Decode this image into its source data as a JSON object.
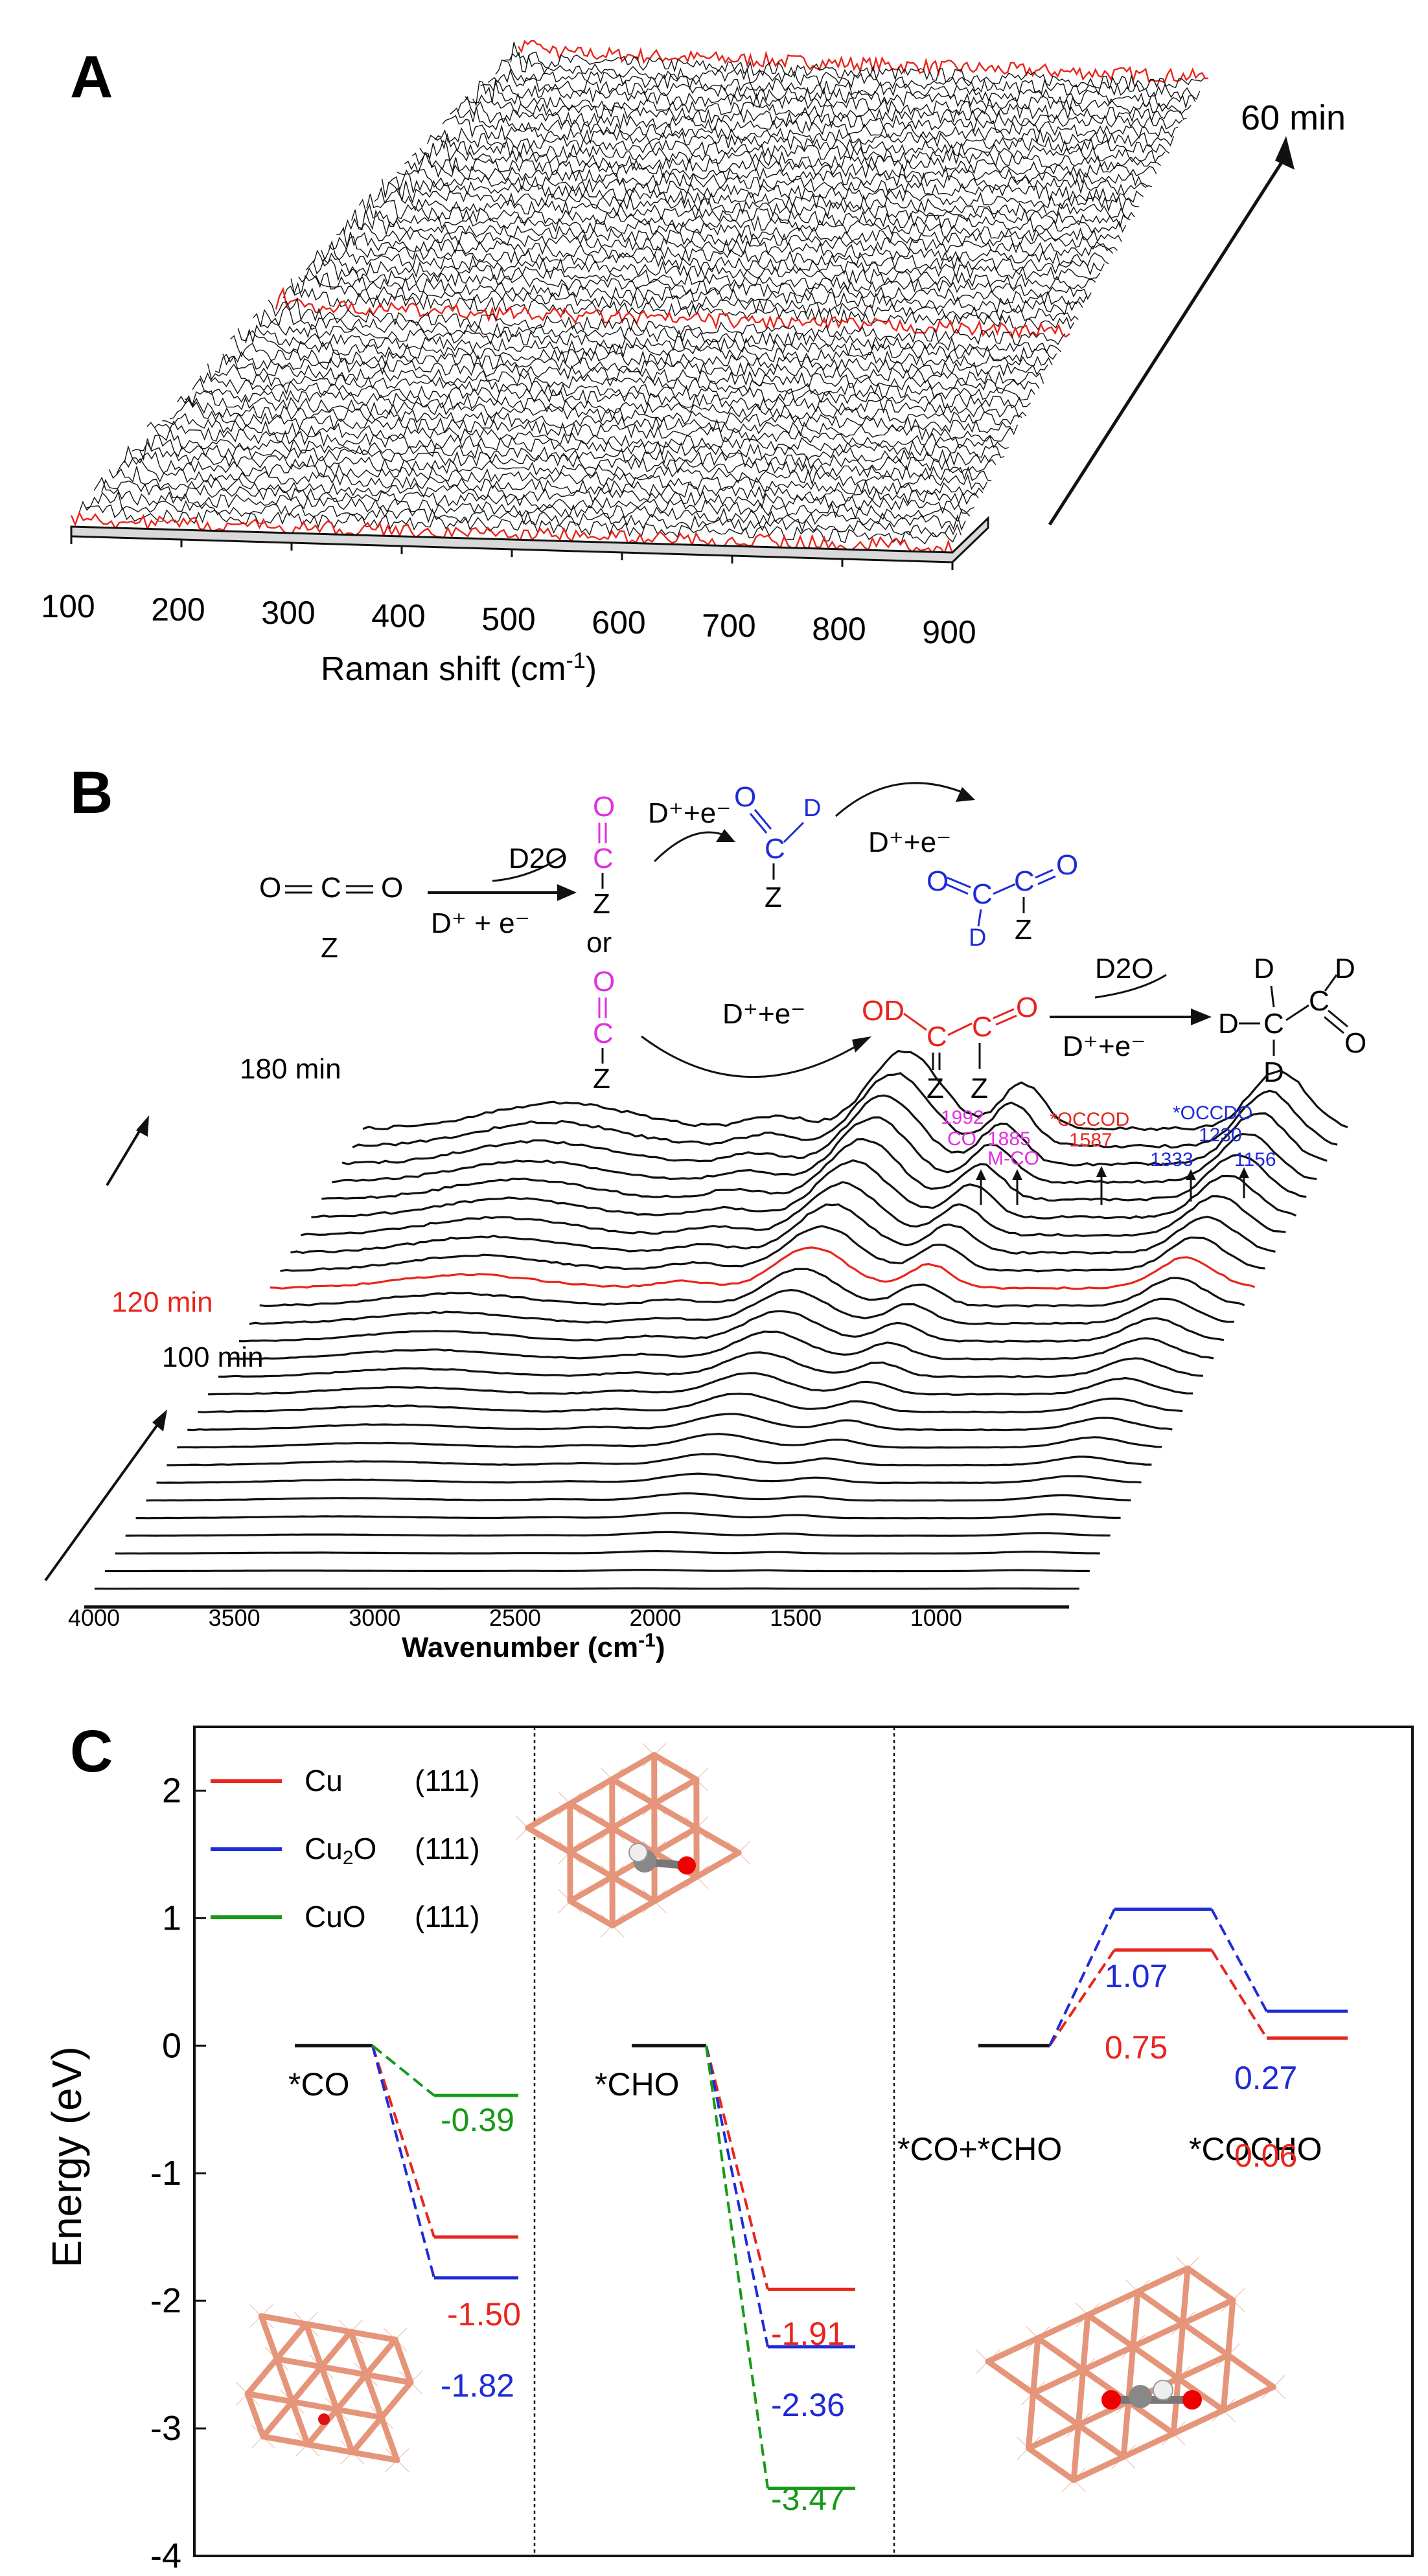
{
  "colors": {
    "black": "#111111",
    "red": "#e8251c",
    "blue": "#1f2bd6",
    "green": "#169a16",
    "magenta": "#e030e0",
    "grey": "#bdbdbd",
    "copper": "#e5957a",
    "copperDark": "#c9604a"
  },
  "panelA": {
    "label": "A",
    "x_ticks": [
      "100",
      "200",
      "300",
      "400",
      "500",
      "600",
      "700",
      "800",
      "900"
    ],
    "x_label": "Raman shift (cm",
    "x_label_sup": "-1",
    "x_label_end": ")",
    "time_label": "60 min"
  },
  "panelB": {
    "label": "B",
    "x_ticks": [
      "4000",
      "3500",
      "3000",
      "2500",
      "2000",
      "1500",
      "1000"
    ],
    "x_label": "Wavenumber (cm",
    "x_label_sup": "-1",
    "x_label_end": ")",
    "time_top": "180 min",
    "time_mid": "120 min",
    "time_low": "100 min",
    "scheme": {
      "co2_left": "O",
      "co2_c": "C",
      "co2_right": "O",
      "co2_z": "Z",
      "d2o_1": "D2O",
      "step1": "D⁺ + e⁻",
      "or": "or",
      "mag_top": [
        "O",
        "C",
        "Z"
      ],
      "mag_bot": [
        "O",
        "C",
        "Z"
      ],
      "step2": "D⁺+e⁻",
      "cho": [
        "O",
        "C",
        "D",
        "Z"
      ],
      "step3": "D⁺+e⁻",
      "occdo": [
        "O",
        "C",
        "C",
        "O",
        "D",
        "Z"
      ],
      "step4": "D⁺+e⁻",
      "occod": [
        "OD",
        "C",
        "C",
        "O",
        "Z",
        "Z"
      ],
      "d2o_2": "D2O",
      "step5": "D⁺+e⁻",
      "product": [
        "D",
        "C",
        "C",
        "D",
        "D",
        "D",
        "O"
      ]
    },
    "annotations": [
      {
        "text": "1992",
        "color": "magenta"
      },
      {
        "text": "CO",
        "color": "magenta"
      },
      {
        "text": "1885",
        "color": "magenta"
      },
      {
        "text": "M-CO",
        "color": "magenta"
      },
      {
        "text": "*OCCOD",
        "color": "red"
      },
      {
        "text": "1587",
        "color": "red"
      },
      {
        "text": "*OCCDO",
        "color": "blue"
      },
      {
        "text": "1230",
        "color": "blue"
      },
      {
        "text": "1333",
        "color": "blue"
      },
      {
        "text": "1156",
        "color": "blue"
      }
    ]
  },
  "panelC": {
    "label": "C",
    "y_label": "Energy (eV)",
    "legend": [
      {
        "name": "Cu",
        "face": "(111)",
        "color": "red"
      },
      {
        "name": "Cu2O",
        "face": "(111)",
        "color": "blue"
      },
      {
        "name": "CuO",
        "face": "(111)",
        "color": "green"
      }
    ],
    "legend_cu2o_main": "Cu",
    "legend_cu2o_sub": "2",
    "legend_cu2o_end": "O",
    "chart_data": {
      "type": "line",
      "title": "",
      "ylabel": "Energy (eV)",
      "ylim": [
        -4,
        2.5
      ],
      "yticks": [
        "2",
        "1",
        "0",
        "-1",
        "-2",
        "-3",
        "-4"
      ],
      "sections": [
        {
          "name": "*CO",
          "start": 0.0,
          "series": [
            {
              "name": "Cu (111)",
              "value": -1.5
            },
            {
              "name": "Cu2O (111)",
              "value": -1.82
            },
            {
              "name": "CuO (111)",
              "value": -0.39
            }
          ]
        },
        {
          "name": "*CHO",
          "start": 0.0,
          "series": [
            {
              "name": "Cu (111)",
              "value": -1.91
            },
            {
              "name": "Cu2O (111)",
              "value": -2.36
            },
            {
              "name": "CuO (111)",
              "value": -3.47
            }
          ]
        },
        {
          "name": "*CO+*CHO",
          "start": 0.0,
          "ts_label": "",
          "series": [
            {
              "name": "Cu (111)",
              "ts": 0.75,
              "final": 0.06
            },
            {
              "name": "Cu2O (111)",
              "ts": 1.07,
              "final": 0.27
            }
          ],
          "final_label": "*COCHO"
        }
      ],
      "labels": {
        "co_cu": "-1.50",
        "co_cu2o": "-1.82",
        "co_cuo": "-0.39",
        "cho_cu": "-1.91",
        "cho_cu2o": "-2.36",
        "cho_cuo": "-3.47",
        "ts_cu": "0.75",
        "ts_cu2o": "1.07",
        "fin_cu": "0.06",
        "fin_cu2o": "0.27"
      }
    }
  }
}
